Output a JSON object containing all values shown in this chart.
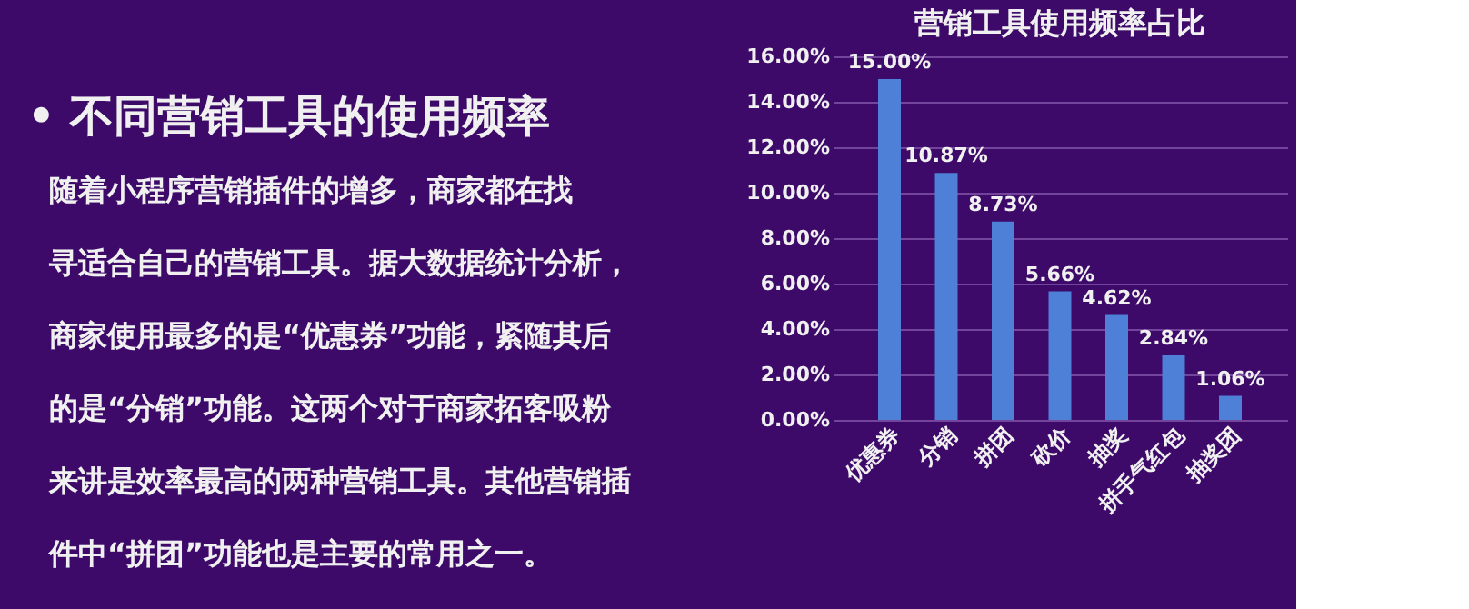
{
  "chart_data": {
    "type": "bar",
    "title": "营销工具使用频率占比",
    "categories": [
      "优惠券",
      "分销",
      "拼团",
      "砍价",
      "抽奖",
      "拼手气红包",
      "抽奖团"
    ],
    "values": [
      15.0,
      10.87,
      8.73,
      5.66,
      4.62,
      2.84,
      1.06
    ],
    "value_labels": [
      "15.00%",
      "10.87%",
      "8.73%",
      "5.66%",
      "4.62%",
      "2.84%",
      "1.06%"
    ],
    "color": "#4f80d8",
    "ylim": [
      0,
      16
    ],
    "yticks": [
      {
        "value": 0,
        "label": "0.00%"
      },
      {
        "value": 2,
        "label": "2.00%"
      },
      {
        "value": 4,
        "label": "4.00%"
      },
      {
        "value": 6,
        "label": "6.00%"
      },
      {
        "value": 8,
        "label": "8.00%"
      },
      {
        "value": 10,
        "label": "10.00%"
      },
      {
        "value": 12,
        "label": "12.00%"
      },
      {
        "value": 14,
        "label": "14.00%"
      },
      {
        "value": 16,
        "label": "16.00%"
      }
    ],
    "grid": "y",
    "annotations": [
      "• 不同营销工具的使用频率",
      "随着小程序营销插件的增多，商家都在找寻适合自己的营销工具。据大数据统计分析，商家使用最多的是“优惠券”功能，紧随其后的是“分销”功能。这两个对于商家拓客吸粉来讲是效率最高的两种营销工具。其他营销插件中“拼团”功能也是主要的常用之一。"
    ]
  }
}
